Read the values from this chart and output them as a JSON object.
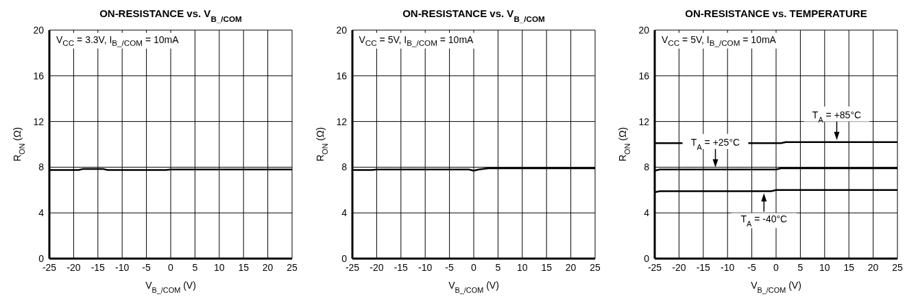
{
  "chart_data": [
    {
      "type": "line",
      "title": "ON-RESISTANCE vs. V$_{B_/COM}$",
      "xlabel": "V$_{B_/COM}$ (V)",
      "ylabel": "R$_{ON}$ (Ω)",
      "annotations": [
        "V$_{CC}$ = 3.3V, I$_{B_/COM}$ = 10mA"
      ],
      "xlim": [
        -25,
        25
      ],
      "xticks": [
        -25,
        -20,
        -15,
        -10,
        -5,
        0,
        5,
        10,
        15,
        20,
        25
      ],
      "ylim": [
        0,
        20
      ],
      "yticks": [
        0,
        4,
        8,
        12,
        16,
        20
      ],
      "grid": true,
      "marker": "none",
      "line_style": "solid",
      "series": [
        {
          "color": "#000000",
          "x": [
            -25,
            -19,
            -18,
            -14,
            -13,
            -1,
            0,
            25
          ],
          "values": [
            7.75,
            7.75,
            7.85,
            7.85,
            7.75,
            7.75,
            7.8,
            7.8
          ]
        }
      ]
    },
    {
      "type": "line",
      "title": "ON-RESISTANCE vs. V$_{B_/COM}$",
      "xlabel": "V$_{B_/COM}$ (V)",
      "ylabel": "R$_{ON}$ (Ω)",
      "annotations": [
        "V$_{CC}$ = 5V, I$_{B_/COM}$ = 10mA"
      ],
      "xlim": [
        -25,
        25
      ],
      "xticks": [
        -25,
        -20,
        -15,
        -10,
        -5,
        0,
        5,
        10,
        15,
        20,
        25
      ],
      "ylim": [
        0,
        20
      ],
      "yticks": [
        0,
        4,
        8,
        12,
        16,
        20
      ],
      "grid": true,
      "marker": "none",
      "line_style": "solid",
      "series": [
        {
          "color": "#000000",
          "x": [
            -25,
            -21,
            -20,
            -1,
            0,
            1,
            3,
            25
          ],
          "values": [
            7.75,
            7.75,
            7.8,
            7.8,
            7.7,
            7.8,
            7.9,
            7.9
          ]
        }
      ]
    },
    {
      "type": "line",
      "title": "ON-RESISTANCE vs. TEMPERATURE",
      "xlabel": "V$_{B_/COM}$ (V)",
      "ylabel": "R$_{ON}$ (Ω)",
      "annotations": [
        "V$_{CC}$ = 5V, I$_{B_/COM}$ = 10mA",
        {
          "text": "T$_{A}$ = +85°C",
          "x": 12.5,
          "y": 10.2
        },
        {
          "text": "T$_{A}$ = +25°C",
          "x": -12.5,
          "y": 7.8
        },
        {
          "text": "T$_{A}$ = -40°C",
          "x": -2.5,
          "y": 5.9
        }
      ],
      "xlim": [
        -25,
        25
      ],
      "xticks": [
        -25,
        -20,
        -15,
        -10,
        -5,
        0,
        5,
        10,
        15,
        20,
        25
      ],
      "ylim": [
        0,
        20
      ],
      "yticks": [
        0,
        4,
        8,
        12,
        16,
        20
      ],
      "grid": true,
      "marker": "none",
      "line_style": "solid",
      "series": [
        {
          "color": "#000000",
          "x": [
            -25,
            1,
            2,
            25
          ],
          "values": [
            10.1,
            10.1,
            10.2,
            10.2
          ]
        },
        {
          "color": "#000000",
          "x": [
            -25,
            -24,
            0,
            1,
            25
          ],
          "values": [
            7.7,
            7.8,
            7.8,
            7.9,
            7.9
          ]
        },
        {
          "color": "#000000",
          "x": [
            -25,
            -24,
            -1,
            0,
            25
          ],
          "values": [
            5.8,
            5.9,
            5.9,
            6.0,
            6.0
          ]
        }
      ]
    }
  ]
}
